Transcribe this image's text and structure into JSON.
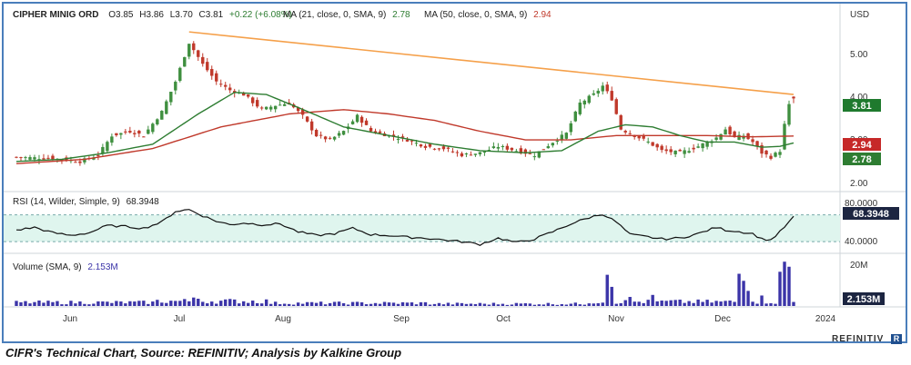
{
  "caption": "CIFR's Technical Chart, Source: REFINITIV; Analysis by Kalkine Group",
  "brand": "REFINITIV",
  "price_panel": {
    "ticker": "CIPHER MINIG ORD",
    "ohlc": {
      "o": "O3.85",
      "h": "H3.86",
      "l": "L3.70",
      "c": "C3.81",
      "chg": "+0.22 (+6.08%)"
    },
    "ma21_label": "MA (21, close, 0, SMA, 9)",
    "ma21_value": "2.78",
    "ma50_label": "MA (50, close, 0, SMA, 9)",
    "ma50_value": "2.94",
    "currency": "USD",
    "y_ticks": [
      "5.00",
      "4.00",
      "3.00",
      "2.00"
    ],
    "badges": {
      "last": "3.81",
      "ma50": "2.94",
      "ma21": "2.78"
    }
  },
  "rsi_panel": {
    "label": "RSI (14, Wilder, Simple, 9)",
    "value": "68.3948",
    "y_ticks": [
      "80.0000",
      "40.0000"
    ],
    "badge": "68.3948"
  },
  "volume_panel": {
    "label": "Volume (SMA, 9)",
    "value": "2.153M",
    "y_tick": "20M",
    "badge": "2.153M"
  },
  "x_ticks": [
    "Jun",
    "Jul",
    "Aug",
    "Sep",
    "Oct",
    "Nov",
    "Dec",
    "2024"
  ],
  "colors": {
    "up": "#3f8f3f",
    "down": "#c0392b",
    "ma21": "#2e7d32",
    "ma50": "#c0392b",
    "trendline": "#f5a04a",
    "rsi_band": "#dff5ee",
    "volume": "#3b34a8",
    "last_badge": "#1f7a2e",
    "ma50_badge": "#c62828",
    "ma21_badge": "#2e7d32",
    "dark_badge": "#1c2541"
  },
  "chart_data": [
    {
      "type": "candlestick",
      "title": "CIPHER MINIG ORD",
      "ylabel": "USD",
      "ylim": [
        1.8,
        5.5
      ],
      "x_tick_labels": [
        "Jun",
        "Jul",
        "Aug",
        "Sep",
        "Oct",
        "Nov",
        "Dec",
        "2024"
      ],
      "close_anchors": [
        [
          0,
          2.45
        ],
        [
          8,
          2.42
        ],
        [
          14,
          2.35
        ],
        [
          18,
          2.5
        ],
        [
          21,
          2.95
        ],
        [
          25,
          3.05
        ],
        [
          28,
          2.95
        ],
        [
          32,
          3.5
        ],
        [
          35,
          4.2
        ],
        [
          38,
          5.1
        ],
        [
          41,
          4.6
        ],
        [
          44,
          4.2
        ],
        [
          47,
          4.0
        ],
        [
          50,
          3.9
        ],
        [
          54,
          3.55
        ],
        [
          57,
          3.65
        ],
        [
          60,
          3.7
        ],
        [
          63,
          3.4
        ],
        [
          66,
          2.95
        ],
        [
          69,
          2.85
        ],
        [
          72,
          3.05
        ],
        [
          75,
          3.4
        ],
        [
          78,
          3.05
        ],
        [
          82,
          2.95
        ],
        [
          86,
          2.85
        ],
        [
          90,
          2.7
        ],
        [
          94,
          2.65
        ],
        [
          98,
          2.5
        ],
        [
          102,
          2.55
        ],
        [
          106,
          2.7
        ],
        [
          110,
          2.6
        ],
        [
          114,
          2.5
        ],
        [
          118,
          2.8
        ],
        [
          121,
          3.0
        ],
        [
          124,
          3.7
        ],
        [
          127,
          3.9
        ],
        [
          129,
          4.1
        ],
        [
          131,
          3.8
        ],
        [
          133,
          3.1
        ],
        [
          136,
          2.95
        ],
        [
          139,
          2.8
        ],
        [
          142,
          2.6
        ],
        [
          146,
          2.55
        ],
        [
          150,
          2.7
        ],
        [
          154,
          2.9
        ],
        [
          156,
          3.1
        ],
        [
          158,
          2.9
        ],
        [
          160,
          2.95
        ],
        [
          162,
          2.8
        ],
        [
          164,
          2.55
        ],
        [
          166,
          2.45
        ],
        [
          168,
          2.6
        ],
        [
          169,
          3.2
        ],
        [
          170,
          3.65
        ],
        [
          171,
          3.81
        ]
      ],
      "ma21_anchors": [
        [
          0,
          2.35
        ],
        [
          10,
          2.4
        ],
        [
          20,
          2.55
        ],
        [
          30,
          2.75
        ],
        [
          40,
          3.45
        ],
        [
          48,
          3.95
        ],
        [
          55,
          3.9
        ],
        [
          62,
          3.6
        ],
        [
          72,
          3.15
        ],
        [
          82,
          2.95
        ],
        [
          92,
          2.75
        ],
        [
          102,
          2.6
        ],
        [
          112,
          2.55
        ],
        [
          120,
          2.6
        ],
        [
          128,
          3.05
        ],
        [
          134,
          3.2
        ],
        [
          140,
          3.15
        ],
        [
          146,
          2.95
        ],
        [
          152,
          2.8
        ],
        [
          158,
          2.8
        ],
        [
          164,
          2.68
        ],
        [
          168,
          2.7
        ],
        [
          171,
          2.78
        ]
      ],
      "ma50_anchors": [
        [
          0,
          2.3
        ],
        [
          15,
          2.4
        ],
        [
          30,
          2.65
        ],
        [
          45,
          3.15
        ],
        [
          60,
          3.45
        ],
        [
          72,
          3.55
        ],
        [
          82,
          3.45
        ],
        [
          92,
          3.3
        ],
        [
          102,
          3.05
        ],
        [
          112,
          2.85
        ],
        [
          122,
          2.85
        ],
        [
          132,
          2.95
        ],
        [
          142,
          2.95
        ],
        [
          152,
          2.95
        ],
        [
          162,
          2.92
        ],
        [
          171,
          2.94
        ]
      ],
      "trendline": {
        "from": [
          38,
          5.35
        ],
        "to": [
          171,
          3.9
        ]
      },
      "last": {
        "open": 3.85,
        "high": 3.86,
        "low": 3.7,
        "close": 3.81
      },
      "series": [
        {
          "name": "MA (21, close, 0, SMA, 9)",
          "last": 2.78
        },
        {
          "name": "MA (50, close, 0, SMA, 9)",
          "last": 2.94
        }
      ]
    },
    {
      "type": "line",
      "title": "RSI (14, Wilder, Simple, 9)",
      "ylim": [
        30,
        90
      ],
      "y_ticks": [
        80,
        40
      ],
      "band": [
        40,
        70
      ],
      "anchors": [
        [
          0,
          53
        ],
        [
          4,
          56
        ],
        [
          8,
          50
        ],
        [
          12,
          47
        ],
        [
          16,
          50
        ],
        [
          20,
          58
        ],
        [
          24,
          57
        ],
        [
          28,
          55
        ],
        [
          32,
          62
        ],
        [
          35,
          74
        ],
        [
          38,
          76
        ],
        [
          41,
          69
        ],
        [
          44,
          63
        ],
        [
          47,
          59
        ],
        [
          50,
          61
        ],
        [
          54,
          59
        ],
        [
          58,
          60
        ],
        [
          62,
          51
        ],
        [
          66,
          47
        ],
        [
          70,
          49
        ],
        [
          74,
          55
        ],
        [
          78,
          48
        ],
        [
          82,
          47
        ],
        [
          86,
          45
        ],
        [
          90,
          44
        ],
        [
          94,
          42
        ],
        [
          98,
          40
        ],
        [
          102,
          37
        ],
        [
          106,
          44
        ],
        [
          110,
          39
        ],
        [
          114,
          43
        ],
        [
          118,
          51
        ],
        [
          122,
          60
        ],
        [
          126,
          67
        ],
        [
          129,
          71
        ],
        [
          132,
          62
        ],
        [
          135,
          48
        ],
        [
          138,
          46
        ],
        [
          142,
          43
        ],
        [
          146,
          44
        ],
        [
          150,
          49
        ],
        [
          154,
          56
        ],
        [
          156,
          53
        ],
        [
          158,
          52
        ],
        [
          162,
          49
        ],
        [
          164,
          43
        ],
        [
          166,
          42
        ],
        [
          168,
          51
        ],
        [
          170,
          62
        ],
        [
          171,
          68.39
        ]
      ],
      "last": 68.3948
    },
    {
      "type": "bar",
      "title": "Volume (SMA, 9)",
      "ylim": [
        0,
        23
      ],
      "y_ticks": [
        20
      ],
      "spikes": {
        "39": 4.2,
        "40": 3.6,
        "130": 15.5,
        "131": 9.5,
        "135": 4.5,
        "140": 5.5,
        "145": 3.0,
        "159": 16.0,
        "160": 12.5,
        "161": 7.5,
        "164": 5.2,
        "168": 17.0,
        "169": 22.0,
        "170": 19.5,
        "171": 2.0
      },
      "base_segments": [
        [
          0,
          30,
          1.6
        ],
        [
          31,
          55,
          2.2
        ],
        [
          56,
          90,
          1.3
        ],
        [
          91,
          125,
          1.0
        ],
        [
          126,
          171,
          1.9
        ]
      ],
      "sma_last": 2.153
    }
  ]
}
